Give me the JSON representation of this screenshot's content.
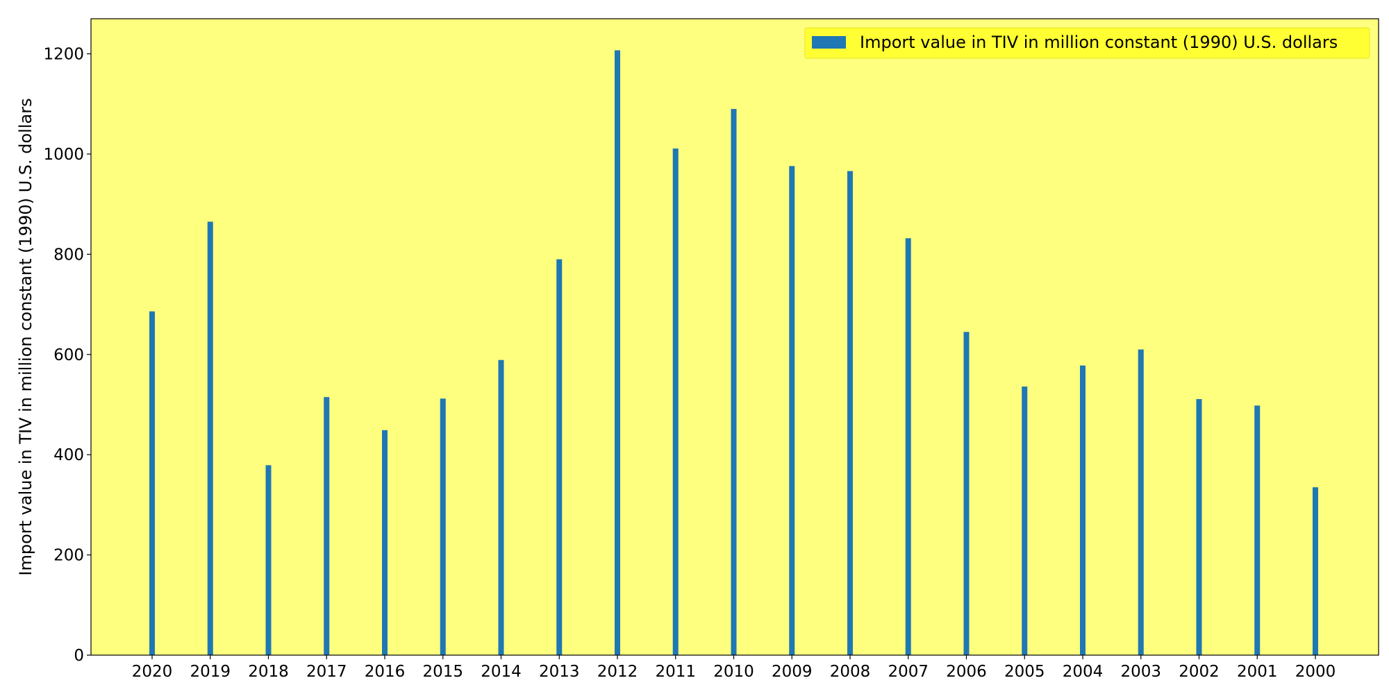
{
  "colors": {
    "plot_background": "#ffff7f",
    "bar": "#1f77b4",
    "legend_background": "#ffff33"
  },
  "chart_data": {
    "type": "bar",
    "categories": [
      "2020",
      "2019",
      "2018",
      "2017",
      "2016",
      "2015",
      "2014",
      "2013",
      "2012",
      "2011",
      "2010",
      "2009",
      "2008",
      "2007",
      "2006",
      "2005",
      "2004",
      "2003",
      "2002",
      "2001",
      "2000"
    ],
    "series": [
      {
        "name": "Import value in TIV in million constant (1990) U.S. dollars",
        "values": [
          686,
          865,
          379,
          515,
          449,
          512,
          589,
          790,
          1207,
          1011,
          1090,
          976,
          966,
          832,
          645,
          536,
          578,
          610,
          511,
          498,
          335
        ]
      }
    ],
    "title": "",
    "xlabel": "",
    "ylabel": "Import value in TIV in million constant (1990) U.S. dollars",
    "ylim": [
      0,
      1270
    ],
    "yticks": [
      0,
      200,
      400,
      600,
      800,
      1000,
      1200
    ],
    "grid": false,
    "legend_position": "top-right"
  }
}
